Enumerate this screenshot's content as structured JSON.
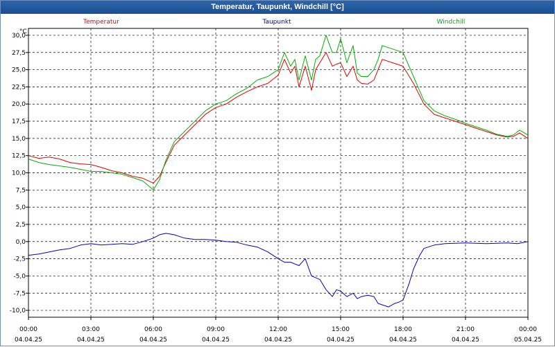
{
  "window": {
    "title": "Temperatur, Taupunkt, Windchill [°C]"
  },
  "chart_data": {
    "type": "line",
    "title": "Temperatur, Taupunkt, Windchill [°C]",
    "ylabel": "°C",
    "ylim": [
      -11,
      31
    ],
    "xlim_hours": [
      0,
      24
    ],
    "grid": true,
    "legend_position": "top",
    "y_ticks": [
      "30,0",
      "27,5",
      "25,0",
      "22,5",
      "20,0",
      "17,5",
      "15,0",
      "12,5",
      "10,0",
      "7,5",
      "5,0",
      "2,5",
      "0,0",
      "-2,5",
      "-5,0",
      "-7,5",
      "-10,0"
    ],
    "x_ticks": [
      {
        "time": "00:00",
        "date": "04.04.25"
      },
      {
        "time": "03:00",
        "date": "04.04.25"
      },
      {
        "time": "06:00",
        "date": "04.04.25"
      },
      {
        "time": "09:00",
        "date": "04.04.25"
      },
      {
        "time": "12:00",
        "date": "04.04.25"
      },
      {
        "time": "15:00",
        "date": "04.04.25"
      },
      {
        "time": "18:00",
        "date": "04.04.25"
      },
      {
        "time": "21:00",
        "date": "04.04.25"
      },
      {
        "time": "00:00",
        "date": "05.04.25"
      }
    ],
    "series": [
      {
        "name": "Temperatur",
        "color": "#e00000",
        "x": [
          0,
          0.5,
          1,
          1.5,
          2,
          2.5,
          3,
          3.5,
          4,
          4.5,
          5,
          5.5,
          6,
          6.3,
          6.6,
          7,
          7.5,
          8,
          8.5,
          9,
          9.5,
          10,
          10.5,
          11,
          11.5,
          12,
          12.3,
          12.6,
          12.8,
          13,
          13.3,
          13.6,
          13.8,
          14,
          14.3,
          14.6,
          14.8,
          15,
          15.3,
          15.6,
          15.8,
          16,
          16.3,
          16.6,
          16.8,
          17,
          17.5,
          18,
          18.5,
          19,
          19.5,
          20,
          20.5,
          21,
          21.5,
          22,
          22.5,
          23,
          23.3,
          23.6,
          24
        ],
        "values": [
          12.5,
          12.1,
          12.3,
          12,
          11.5,
          11.3,
          11.2,
          10.8,
          10.3,
          10,
          9.5,
          9.2,
          8.5,
          9.5,
          11.5,
          14,
          15.5,
          17,
          18.5,
          19.5,
          20,
          21,
          21.8,
          22.5,
          23,
          24.2,
          26.5,
          24.5,
          25.5,
          22.5,
          25.5,
          22,
          25,
          26,
          27.5,
          25.5,
          25.8,
          26,
          24,
          25.5,
          23.5,
          23,
          22.9,
          23.5,
          25,
          26.5,
          26,
          25.5,
          23,
          20,
          18.5,
          18,
          17.5,
          17,
          16.5,
          16,
          15.5,
          15.2,
          15.3,
          15.8,
          15
        ]
      },
      {
        "name": "Taupunkt",
        "color": "#0000c0",
        "x": [
          0,
          0.5,
          1,
          1.5,
          2,
          2.5,
          3,
          3.5,
          4,
          4.5,
          5,
          5.5,
          6,
          6.3,
          6.6,
          7,
          7.5,
          8,
          8.5,
          9,
          9.5,
          10,
          10.5,
          11,
          11.5,
          12,
          12.3,
          12.6,
          13,
          13.3,
          13.6,
          14,
          14.3,
          14.6,
          14.8,
          15,
          15.3,
          15.6,
          15.8,
          16,
          16.3,
          16.6,
          16.8,
          17,
          17.3,
          17.6,
          17.8,
          18,
          18.3,
          18.5,
          18.8,
          19,
          19.5,
          20,
          21,
          22,
          23,
          23.5,
          24
        ],
        "values": [
          -2,
          -1.8,
          -1.5,
          -1.2,
          -1,
          -0.5,
          -0.3,
          -0.5,
          -0.4,
          -0.3,
          -0.4,
          0,
          0.5,
          1,
          1.2,
          1,
          0.5,
          0.3,
          0.3,
          0.2,
          0,
          -0.1,
          -0.5,
          -0.8,
          -1.5,
          -2.5,
          -3,
          -3,
          -3.5,
          -2.5,
          -5,
          -5.5,
          -7,
          -8,
          -7,
          -7.2,
          -8,
          -7.5,
          -8.3,
          -8,
          -7.8,
          -8,
          -9,
          -9.2,
          -9.5,
          -9,
          -8.8,
          -8.5,
          -6,
          -4,
          -2,
          -1,
          -0.5,
          -0.3,
          -0.2,
          -0.3,
          -0.2,
          -0.3,
          0
        ]
      },
      {
        "name": "Windchill",
        "color": "#00b000",
        "x": [
          0,
          0.5,
          1,
          1.5,
          2,
          2.5,
          3,
          3.5,
          4,
          4.5,
          5,
          5.5,
          6,
          6.3,
          6.6,
          7,
          7.5,
          8,
          8.5,
          9,
          9.5,
          10,
          10.5,
          11,
          11.5,
          12,
          12.3,
          12.6,
          12.8,
          13,
          13.3,
          13.6,
          13.8,
          14,
          14.3,
          14.6,
          14.8,
          15,
          15.3,
          15.6,
          15.8,
          16,
          16.3,
          16.6,
          16.8,
          17,
          17.5,
          18,
          18.5,
          19,
          19.5,
          20,
          20.5,
          21,
          21.5,
          22,
          22.5,
          23,
          23.3,
          23.6,
          24
        ],
        "values": [
          12,
          11.5,
          11.2,
          11,
          10.8,
          10.5,
          10.2,
          10.2,
          10,
          9.8,
          9.3,
          8.8,
          7.5,
          9,
          11.8,
          14.5,
          16,
          17.5,
          19,
          20,
          20.5,
          21.5,
          22.3,
          23.5,
          24,
          25,
          27.5,
          25.5,
          26.5,
          23.5,
          27,
          23.5,
          26.5,
          27,
          30,
          27.5,
          27.5,
          29.5,
          26,
          28.5,
          24.5,
          24,
          24,
          25,
          26.5,
          28.5,
          28,
          27.5,
          24,
          20.5,
          19,
          18.3,
          17.8,
          17.2,
          16.7,
          16.2,
          15.6,
          15.3,
          15.5,
          16.2,
          15.5
        ]
      }
    ]
  }
}
